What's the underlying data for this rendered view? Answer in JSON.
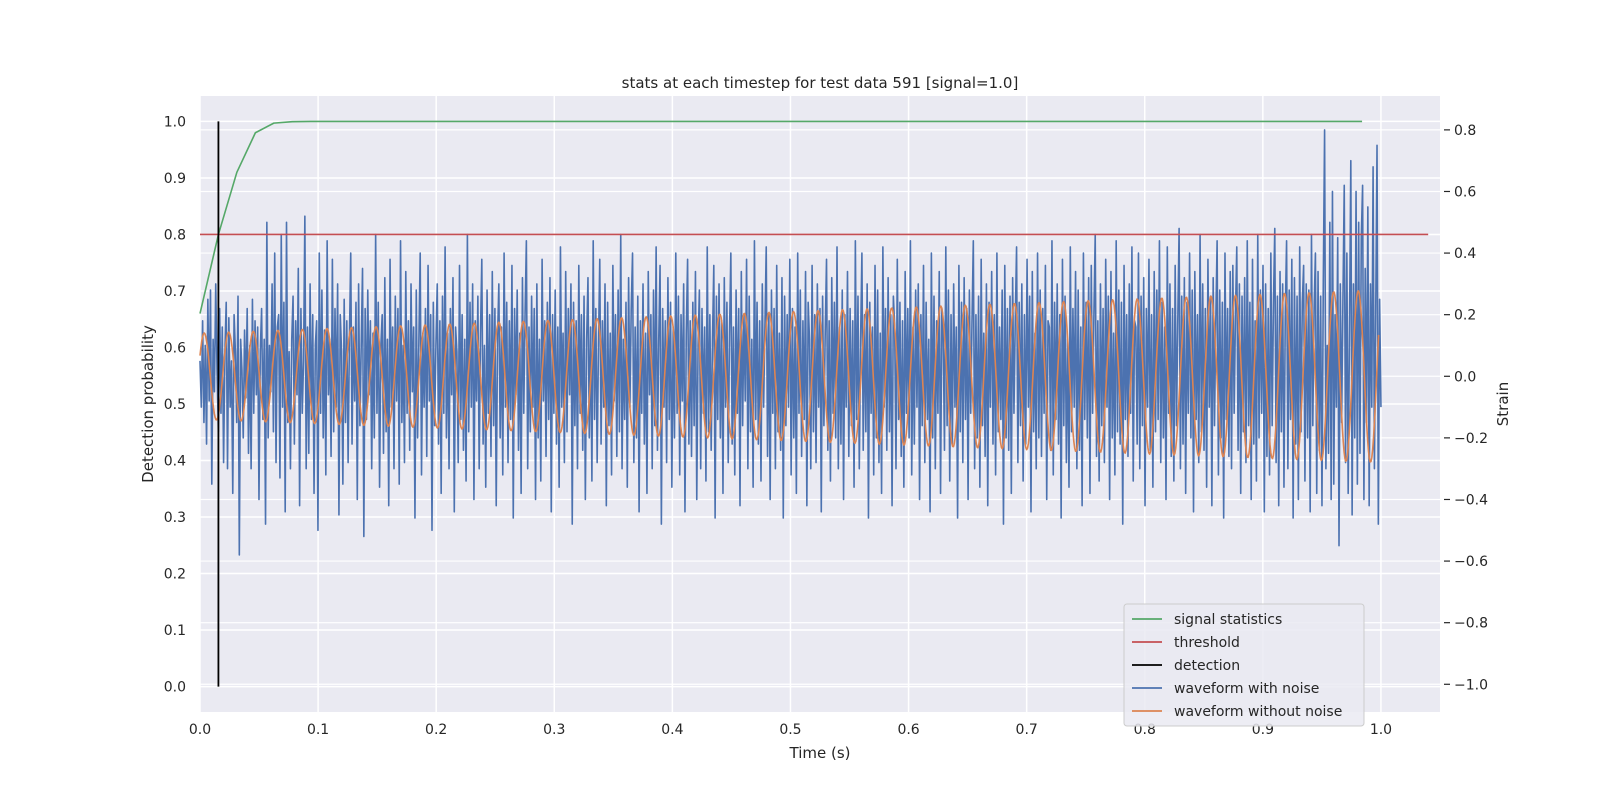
{
  "chart_data": {
    "type": "line",
    "title": "stats at each timestep for test data 591 [signal=1.0]",
    "xlabel": "Time (s)",
    "ylabel": "Detection probability",
    "y2label": "Strain",
    "xlim": [
      0.0,
      1.05
    ],
    "ylim": [
      -0.045,
      1.045
    ],
    "y2lim": [
      -1.09,
      0.91
    ],
    "xticks": [
      0.0,
      0.1,
      0.2,
      0.3,
      0.4,
      0.5,
      0.6,
      0.7,
      0.8,
      0.9,
      1.0
    ],
    "xtick_labels": [
      "0.0",
      "0.1",
      "0.2",
      "0.3",
      "0.4",
      "0.5",
      "0.6",
      "0.7",
      "0.8",
      "0.9",
      "1.0"
    ],
    "yticks": [
      0.0,
      0.1,
      0.2,
      0.3,
      0.4,
      0.5,
      0.6,
      0.7,
      0.8,
      0.9,
      1.0
    ],
    "ytick_labels": [
      "0.0",
      "0.1",
      "0.2",
      "0.3",
      "0.4",
      "0.5",
      "0.6",
      "0.7",
      "0.8",
      "0.9",
      "1.0"
    ],
    "y2ticks": [
      -1.0,
      -0.8,
      -0.6,
      -0.4,
      -0.2,
      0.0,
      0.2,
      0.4,
      0.6,
      0.8
    ],
    "y2tick_labels": [
      "−1.0",
      "−0.8",
      "−0.6",
      "−0.4",
      "−0.2",
      "0.0",
      "0.2",
      "0.4",
      "0.6",
      "0.8"
    ],
    "grid": true,
    "legend_position": "lower-right",
    "series": [
      {
        "name": "signal statistics",
        "axis": "left",
        "color": "#55a868",
        "x": [
          0.0,
          0.0156,
          0.0312,
          0.0469,
          0.0625,
          0.0781,
          0.0938,
          0.1094,
          0.2,
          0.4,
          0.6,
          0.8,
          0.984
        ],
        "y": [
          0.66,
          0.8,
          0.91,
          0.98,
          0.997,
          0.9995,
          1.0,
          1.0,
          1.0,
          1.0,
          1.0,
          1.0,
          1.0
        ]
      },
      {
        "name": "threshold",
        "axis": "left",
        "color": "#c44e52",
        "x": [
          0.0,
          1.04
        ],
        "y": [
          0.8,
          0.8
        ]
      },
      {
        "name": "detection",
        "axis": "left",
        "color": "#000000",
        "x": [
          0.0156,
          0.0156
        ],
        "y": [
          0.0,
          1.0
        ]
      },
      {
        "name": "waveform with noise",
        "axis": "right",
        "color": "#4c72b0",
        "x_start": 0.0,
        "x_end": 1.0,
        "y": [
          0.05,
          -0.1,
          0.18,
          -0.15,
          0.1,
          -0.22,
          0.25,
          -0.08,
          0.28,
          -0.35,
          0.12,
          -0.05,
          0.3,
          0.02,
          -0.18,
          0.22,
          -0.12,
          0.16,
          -0.28,
          0.08,
          0.24,
          -0.3,
          0.19,
          -0.1,
          0.05,
          -0.38,
          0.2,
          0.08,
          -0.15,
          0.26,
          -0.58,
          0.12,
          0.02,
          -0.2,
          0.15,
          -0.07,
          0.22,
          -0.25,
          0.1,
          -0.3,
          0.25,
          -0.12,
          0.18,
          -0.06,
          0.16,
          -0.4,
          0.08,
          0.22,
          -0.14,
          0.12,
          -0.48,
          0.5,
          -0.2,
          0.1,
          -0.05,
          0.3,
          -0.18,
          0.4,
          -0.28,
          0.16,
          0.2,
          -0.33,
          0.46,
          -0.1,
          0.24,
          -0.44,
          0.5,
          -0.15,
          0.08,
          -0.3,
          0.12,
          0.26,
          -0.22,
          0.18,
          -0.06,
          0.35,
          -0.42,
          0.22,
          -0.12,
          0.05,
          0.52,
          -0.3,
          0.16,
          -0.25,
          0.3,
          -0.14,
          0.2,
          -0.38,
          0.1,
          0.18,
          -0.5,
          0.4,
          -0.12,
          0.28,
          -0.2,
          0.15,
          -0.32,
          0.44,
          -0.06,
          0.12,
          -0.26,
          0.38,
          -0.18,
          0.22,
          -0.1,
          0.3,
          -0.45,
          0.2,
          0.08,
          -0.35,
          0.25,
          -0.15,
          0.18,
          -0.28,
          0.12,
          0.4,
          -0.22,
          0.16,
          -0.08,
          0.24,
          -0.4,
          0.3,
          -0.16,
          0.1,
          0.35,
          -0.52,
          0.22,
          -0.14,
          0.28,
          -0.06,
          0.18,
          -0.3,
          0.14,
          -0.2,
          0.46,
          -0.12,
          0.24,
          -0.36,
          0.1,
          0.2,
          -0.25,
          0.32,
          -0.18,
          0.12,
          -0.42,
          0.38,
          -0.1,
          0.16,
          -0.3,
          0.26,
          -0.08,
          0.22,
          -0.35,
          0.44,
          -0.15,
          0.1,
          -0.28,
          0.34,
          -0.12,
          0.18,
          -0.24,
          0.3,
          -0.05,
          0.16,
          -0.46,
          0.28,
          -0.2,
          0.12,
          0.4,
          -0.32,
          0.14,
          -0.1,
          0.22,
          -0.26,
          0.36,
          -0.08,
          0.2,
          -0.5,
          0.24,
          -0.16,
          0.1,
          0.3,
          -0.22,
          0.18,
          -0.38,
          0.26,
          -0.12,
          0.42,
          -0.2,
          0.14,
          -0.3,
          0.22,
          -0.06,
          0.32,
          -0.44,
          0.16,
          0.08,
          -0.28,
          0.36,
          -0.14,
          0.2,
          -0.24,
          0.12,
          -0.34,
          0.46,
          -0.18,
          0.24,
          -0.1,
          0.3,
          -0.4,
          0.18,
          -0.08,
          0.26,
          -0.3,
          0.14,
          0.38,
          -0.22,
          0.1,
          -0.36,
          0.28,
          -0.12,
          0.2,
          -0.26,
          0.34,
          -0.16,
          0.22,
          -0.42,
          0.12,
          0.3,
          -0.2,
          0.16,
          -0.32,
          0.4,
          -0.1,
          0.24,
          -0.28,
          0.18,
          -0.14,
          0.36,
          -0.46,
          0.22,
          -0.06,
          0.28,
          -0.24,
          0.14,
          -0.38,
          0.32,
          -0.12,
          0.2,
          0.44,
          -0.3,
          0.16,
          -0.18,
          0.26,
          -0.1,
          0.22,
          -0.4,
          0.3,
          -0.2,
          0.12,
          -0.34,
          0.38,
          -0.08,
          0.18,
          -0.26,
          0.24,
          -0.14,
          0.32,
          -0.44,
          0.2,
          -0.12,
          0.28,
          -0.22,
          0.16,
          -0.36,
          0.42,
          -0.1,
          0.14,
          -0.28,
          0.34,
          -0.18,
          0.22,
          -0.06,
          0.3,
          -0.48,
          0.24,
          -0.16,
          0.18,
          -0.3,
          0.36,
          -0.12,
          0.2,
          -0.24,
          0.26,
          -0.4,
          0.12,
          0.32,
          -0.2,
          0.16,
          -0.34,
          0.44,
          -0.14,
          0.22,
          -0.28,
          0.1,
          0.38,
          -0.22,
          0.18,
          -0.1,
          0.3,
          -0.42,
          0.24,
          -0.16,
          0.14,
          -0.32,
          0.36,
          -0.08,
          0.2,
          -0.26,
          0.28,
          -0.18,
          0.46,
          -0.3,
          0.12,
          -0.14,
          0.24,
          -0.36,
          0.32,
          -0.1,
          0.22,
          0.4,
          -0.28,
          0.16,
          -0.2,
          0.26,
          -0.44,
          0.18,
          -0.12,
          0.3,
          -0.22,
          0.14,
          -0.38,
          0.34,
          -0.06,
          0.2,
          -0.3,
          0.28,
          -0.16,
          0.42,
          -0.24,
          0.12,
          0.36,
          -0.48,
          0.22,
          -0.1,
          0.18,
          -0.28,
          0.32,
          -0.14,
          0.24,
          -0.36,
          0.16,
          -0.2,
          0.4,
          -0.12,
          0.26,
          -0.32,
          0.2,
          -0.08,
          0.3,
          -0.44,
          0.14,
          0.38,
          -0.22,
          0.18,
          -0.26,
          0.24,
          -0.16,
          0.34,
          -0.4,
          0.1,
          0.28,
          -0.3,
          0.22,
          -0.12,
          0.16,
          -0.34,
          0.42,
          -0.18,
          0.2,
          -0.24,
          0.12,
          0.36,
          -0.46,
          0.26,
          -0.14,
          0.3,
          -0.2,
          0.18,
          -0.38,
          0.32,
          -0.1,
          0.24,
          -0.28,
          0.14,
          0.4,
          -0.22,
          0.16,
          -0.32,
          0.28,
          -0.12,
          0.22,
          -0.42,
          0.34,
          -0.16,
          0.2,
          -0.08,
          0.38,
          -0.3,
          0.26,
          -0.18,
          0.12,
          -0.36,
          0.44,
          -0.14,
          0.24,
          -0.22,
          0.18,
          -0.34,
          0.3,
          -0.1,
          0.16,
          0.42,
          -0.26,
          0.2,
          -0.4,
          0.28,
          -0.12,
          0.22,
          -0.3,
          0.36,
          -0.18,
          0.14,
          -0.24,
          0.32,
          -0.46,
          0.26,
          -0.16,
          0.2,
          -0.1,
          0.38,
          -0.32,
          0.22,
          -0.2,
          0.16,
          -0.38,
          0.4,
          -0.12,
          0.28,
          -0.26,
          0.18,
          -0.14,
          0.34,
          -0.42,
          0.24,
          0.12,
          -0.3,
          0.36,
          -0.18,
          0.2,
          -0.28,
          0.3,
          -0.1,
          0.22,
          -0.44,
          0.26,
          -0.16,
          0.14,
          0.38,
          -0.24,
          0.18,
          -0.34,
          0.32,
          -0.12,
          0.24,
          -0.2,
          0.42,
          -0.3,
          0.16,
          -0.22,
          0.28,
          -0.4,
          0.2,
          -0.1,
          0.34,
          -0.26,
          0.22,
          -0.16,
          0.18,
          -0.36,
          0.44,
          -0.14,
          0.26,
          -0.3,
          0.12,
          0.4,
          -0.24,
          0.2,
          -0.18,
          0.3,
          -0.46,
          0.24,
          -0.12,
          0.16,
          -0.32,
          0.36,
          -0.2,
          0.28,
          -0.28,
          0.14,
          -0.38,
          0.42,
          -0.1,
          0.22,
          -0.24,
          0.32,
          -0.18,
          0.2,
          -0.42,
          0.26,
          0.16,
          -0.3,
          0.38,
          -0.14,
          0.24,
          -0.26,
          0.18,
          -0.36,
          0.34,
          -0.12,
          0.22,
          -0.2,
          0.44,
          -0.32,
          0.16,
          -0.22,
          0.28,
          -0.1,
          0.3,
          -0.4,
          0.2,
          -0.16,
          0.36,
          -0.28,
          0.24,
          -0.14,
          0.12,
          -0.44,
          0.4,
          -0.2,
          0.26,
          -0.3,
          0.18,
          -0.12,
          0.34,
          -0.38,
          0.22,
          0.14,
          -0.24,
          0.42,
          -0.16,
          0.28,
          -0.34,
          0.2,
          -0.22,
          0.3,
          -0.1,
          0.16,
          -0.46,
          0.36,
          -0.18,
          0.24,
          -0.28,
          0.32,
          -0.14,
          0.22,
          -0.4,
          0.28,
          -0.12,
          0.18,
          0.44,
          -0.3,
          0.2,
          -0.2,
          0.26,
          -0.36,
          0.38,
          -0.16,
          0.14,
          -0.26,
          0.3,
          -0.42,
          0.24,
          -0.1,
          0.34,
          -0.22,
          0.2,
          -0.32,
          0.4,
          -0.18,
          0.16,
          -0.14,
          0.28,
          -0.48,
          0.36,
          -0.2,
          0.22,
          -0.24,
          0.26,
          -0.38,
          0.32,
          -0.12,
          0.18,
          0.42,
          -0.28,
          0.24,
          -0.16,
          0.3,
          -0.34,
          0.2,
          -0.22,
          0.38,
          -0.1,
          0.26,
          -0.44,
          0.34,
          -0.18,
          0.14,
          -0.3,
          0.4,
          -0.2,
          0.28,
          -0.26,
          0.22,
          -0.12,
          0.36,
          -0.4,
          0.18,
          0.16,
          -0.24,
          0.44,
          -0.32,
          0.24,
          -0.14,
          0.3,
          -0.22,
          0.2,
          -0.46,
          0.38,
          -0.16,
          0.26,
          -0.28,
          0.12,
          -0.36,
          0.42,
          -0.18,
          0.22,
          -0.1,
          0.34,
          -0.3,
          0.28,
          -0.24,
          0.16,
          -0.42,
          0.4,
          -0.14,
          0.24,
          -0.2,
          0.32,
          -0.38,
          0.36,
          -0.12,
          0.2,
          0.46,
          -0.26,
          0.18,
          -0.34,
          0.3,
          -0.16,
          0.22,
          -0.28,
          0.38,
          -0.1,
          0.26,
          -0.4,
          0.34,
          -0.2,
          0.14,
          -0.32,
          0.44,
          -0.18,
          0.28,
          -0.22,
          0.24,
          -0.48,
          0.36,
          -0.14,
          0.2,
          -0.26,
          0.3,
          -0.12,
          0.42,
          -0.34,
          0.18,
          0.16,
          -0.22,
          0.4,
          -0.3,
          0.26,
          -0.16,
          0.32,
          -0.42,
          0.22,
          -0.1,
          0.38,
          -0.24,
          0.2,
          -0.36,
          0.34,
          -0.18,
          0.28,
          -0.14,
          0.44,
          -0.28,
          0.24,
          -0.2,
          0.16,
          -0.4,
          0.42,
          -0.12,
          0.3,
          -0.26,
          0.22,
          -0.34,
          0.36,
          -0.16,
          0.18,
          0.48,
          -0.3,
          0.26,
          -0.22,
          0.32,
          -0.38,
          0.24,
          -0.12,
          0.4,
          -0.2,
          0.28,
          -0.44,
          0.34,
          -0.14,
          0.2,
          -0.28,
          0.46,
          -0.18,
          0.3,
          -0.24,
          0.22,
          -0.36,
          0.38,
          -0.1,
          0.26,
          -0.42,
          0.32,
          -0.16,
          0.18,
          0.44,
          -0.32,
          0.28,
          -0.2,
          0.24,
          -0.46,
          0.4,
          -0.14,
          0.22,
          -0.26,
          0.34,
          -0.3,
          0.36,
          -0.12,
          0.2,
          0.42,
          -0.24,
          0.3,
          -0.38,
          0.26,
          -0.18,
          0.32,
          -0.28,
          0.44,
          -0.16,
          0.24,
          -0.4,
          0.38,
          -0.22,
          0.18,
          -0.34,
          0.46,
          -0.2,
          0.28,
          -0.12,
          0.36,
          -0.44,
          0.3,
          -0.26,
          0.22,
          -0.32,
          0.4,
          -0.16,
          0.24,
          0.48,
          -0.28,
          0.26,
          -0.42,
          0.34,
          -0.18,
          0.3,
          -0.36,
          0.2,
          0.44,
          -0.3,
          0.28,
          -0.14,
          0.38,
          -0.46,
          0.32,
          -0.22,
          0.26,
          -0.4,
          0.42,
          -0.18,
          0.24,
          0.36,
          -0.34,
          0.3,
          -0.2,
          0.28,
          -0.44,
          0.46,
          -0.16,
          0.22,
          0.4,
          -0.38,
          0.34,
          -0.24,
          0.26,
          -0.42,
          0.3,
          0.8,
          -0.3,
          0.1,
          -0.25,
          0.5,
          -0.4,
          0.6,
          -0.35,
          0.2,
          -0.1,
          0.45,
          -0.55,
          0.3,
          -0.15,
          0.25,
          0.62,
          -0.28,
          0.4,
          -0.38,
          0.15,
          0.7,
          -0.45,
          0.3,
          -0.2,
          0.6,
          -0.35,
          0.5,
          -0.25,
          0.45,
          0.62,
          -0.4,
          0.35,
          -0.15,
          0.55,
          -0.42,
          0.3,
          -0.1,
          0.68,
          -0.3,
          0.2,
          0.75,
          -0.48,
          0.25,
          -0.1
        ]
      },
      {
        "name": "waveform without noise",
        "axis": "right",
        "color": "#dd8452",
        "x_start": 0.0,
        "x_end": 0.998,
        "cycles": 48,
        "amplitude_start": 0.14,
        "amplitude_end": 0.28,
        "offset": 0.0
      }
    ],
    "legend": [
      {
        "label": "signal statistics",
        "color": "#55a868"
      },
      {
        "label": "threshold",
        "color": "#c44e52"
      },
      {
        "label": "detection",
        "color": "#000000"
      },
      {
        "label": "waveform with noise",
        "color": "#4c72b0"
      },
      {
        "label": "waveform without noise",
        "color": "#dd8452"
      }
    ]
  }
}
